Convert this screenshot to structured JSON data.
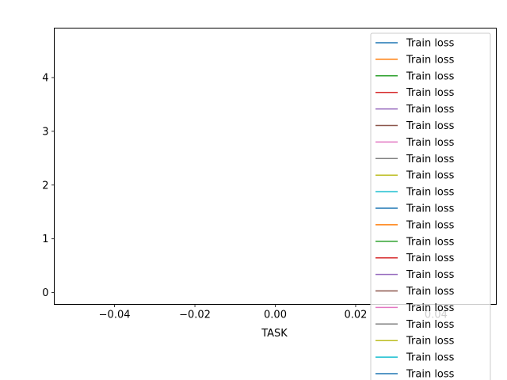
{
  "chart_data": {
    "type": "line",
    "title": "",
    "xlabel": "TASK",
    "ylabel": "",
    "xlim": [
      -0.055,
      0.055
    ],
    "ylim": [
      -0.22,
      4.92
    ],
    "x_ticks": [
      -0.04,
      -0.02,
      0.0,
      0.02,
      0.04
    ],
    "x_tick_labels": [
      "−0.04",
      "−0.02",
      "0.00",
      "0.02",
      "0.04"
    ],
    "y_ticks": [
      0,
      1,
      2,
      3,
      4
    ],
    "y_tick_labels": [
      "0",
      "1",
      "2",
      "3",
      "4"
    ],
    "grid": false,
    "legend_position": "top-right",
    "series": [
      {
        "name": "Train loss",
        "color": "#1f77b4",
        "x": [],
        "y": []
      },
      {
        "name": "Train loss",
        "color": "#ff7f0e",
        "x": [],
        "y": []
      },
      {
        "name": "Train loss",
        "color": "#2ca02c",
        "x": [],
        "y": []
      },
      {
        "name": "Train loss",
        "color": "#d62728",
        "x": [],
        "y": []
      },
      {
        "name": "Train loss",
        "color": "#9467bd",
        "x": [],
        "y": []
      },
      {
        "name": "Train loss",
        "color": "#8c564b",
        "x": [],
        "y": []
      },
      {
        "name": "Train loss",
        "color": "#e377c2",
        "x": [],
        "y": []
      },
      {
        "name": "Train loss",
        "color": "#7f7f7f",
        "x": [],
        "y": []
      },
      {
        "name": "Train loss",
        "color": "#bcbd22",
        "x": [],
        "y": []
      },
      {
        "name": "Train loss",
        "color": "#17becf",
        "x": [],
        "y": []
      },
      {
        "name": "Train loss",
        "color": "#1f77b4",
        "x": [],
        "y": []
      },
      {
        "name": "Train loss",
        "color": "#ff7f0e",
        "x": [],
        "y": []
      },
      {
        "name": "Train loss",
        "color": "#2ca02c",
        "x": [],
        "y": []
      },
      {
        "name": "Train loss",
        "color": "#d62728",
        "x": [],
        "y": []
      },
      {
        "name": "Train loss",
        "color": "#9467bd",
        "x": [],
        "y": []
      },
      {
        "name": "Train loss",
        "color": "#8c564b",
        "x": [],
        "y": []
      },
      {
        "name": "Train loss",
        "color": "#e377c2",
        "x": [],
        "y": []
      },
      {
        "name": "Train loss",
        "color": "#7f7f7f",
        "x": [],
        "y": []
      },
      {
        "name": "Train loss",
        "color": "#bcbd22",
        "x": [],
        "y": []
      },
      {
        "name": "Train loss",
        "color": "#17becf",
        "x": [],
        "y": []
      },
      {
        "name": "Train loss",
        "color": "#1f77b4",
        "x": [],
        "y": []
      }
    ]
  }
}
